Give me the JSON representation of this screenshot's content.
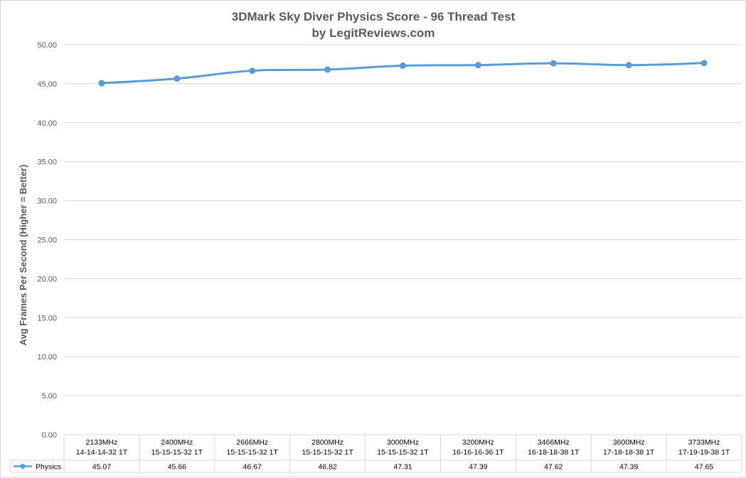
{
  "chart_data": {
    "type": "line",
    "title": "3DMark Sky Diver Physics Score - 96 Thread Test",
    "subtitle": "by LegitReviews.com",
    "ylabel": "Avg Frames Per Second (Higher = Better)",
    "xlabel": "",
    "ylim": [
      0,
      50
    ],
    "yticks": [
      "0.00",
      "5.00",
      "10.00",
      "15.00",
      "20.00",
      "25.00",
      "30.00",
      "35.00",
      "40.00",
      "45.00",
      "50.00"
    ],
    "grid": true,
    "legend": "data-table",
    "categories": [
      [
        "2133MHz",
        "14-14-14-32 1T"
      ],
      [
        "2400MHz",
        "15-15-15-32 1T"
      ],
      [
        "2666MHz",
        "15-15-15-32 1T"
      ],
      [
        "2800MHz",
        "15-15-15-32 1T"
      ],
      [
        "3000MHz",
        "15-15-15-32 1T"
      ],
      [
        "3200MHz",
        "16-16-16-36 1T"
      ],
      [
        "3466MHz",
        "16-18-18-38 1T"
      ],
      [
        "3600MHz",
        "17-18-18-38 1T"
      ],
      [
        "3733MHz",
        "17-19-19-38 1T"
      ]
    ],
    "series": [
      {
        "name": "Physics",
        "values": [
          45.07,
          45.66,
          46.67,
          46.82,
          47.31,
          47.39,
          47.62,
          47.39,
          47.65
        ],
        "labels": [
          "45.07",
          "45.66",
          "46.67",
          "46.82",
          "47.31",
          "47.39",
          "47.62",
          "47.39",
          "47.65"
        ],
        "color": "#5b9bd5"
      }
    ],
    "colors": {
      "grid": "#d9d9d9",
      "text": "#595959",
      "table_border": "#d9d9d9"
    }
  }
}
